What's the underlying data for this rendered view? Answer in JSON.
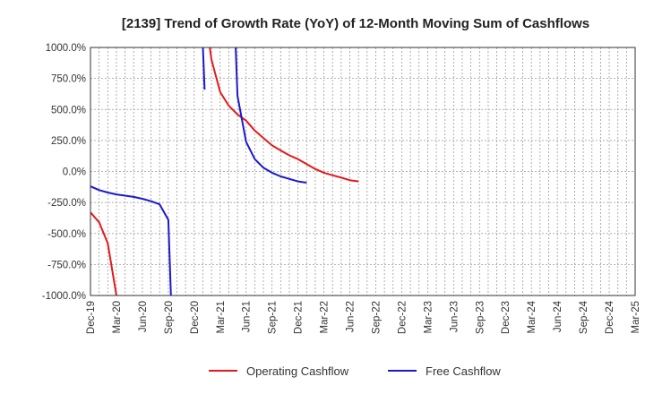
{
  "chart_data": {
    "type": "line",
    "title": "[2139]  Trend of Growth Rate (YoY) of 12-Month Moving Sum of Cashflows",
    "xlabel": "",
    "ylabel": "",
    "ylim": [
      -1000,
      1000
    ],
    "y_ticks": [
      "1000.0%",
      "750.0%",
      "500.0%",
      "250.0%",
      "0.0%",
      "-250.0%",
      "-500.0%",
      "-750.0%",
      "-1000.0%"
    ],
    "y_tick_values": [
      1000,
      750,
      500,
      250,
      0,
      -250,
      -500,
      -750,
      -1000
    ],
    "x_ticks": [
      "Dec-19",
      "Mar-20",
      "Jun-20",
      "Sep-20",
      "Dec-20",
      "Mar-21",
      "Jun-21",
      "Sep-21",
      "Dec-21",
      "Mar-22",
      "Jun-22",
      "Sep-22",
      "Dec-22",
      "Mar-23",
      "Jun-23",
      "Sep-23",
      "Dec-23",
      "Mar-24",
      "Jun-24",
      "Sep-24",
      "Dec-24",
      "Mar-25"
    ],
    "grid": true,
    "legend_position": "bottom",
    "series": [
      {
        "name": "Operating Cashflow",
        "color": "#e31a1c",
        "segments": [
          [
            [
              0,
              -330
            ],
            [
              1,
              -410
            ],
            [
              2,
              -580
            ],
            [
              3,
              -1000
            ]
          ],
          [
            [
              13.8,
              1000
            ],
            [
              14,
              900
            ],
            [
              15,
              640
            ],
            [
              16,
              530
            ],
            [
              17,
              460
            ],
            [
              18,
              410
            ],
            [
              19,
              330
            ],
            [
              20,
              270
            ],
            [
              21,
              210
            ],
            [
              22,
              170
            ],
            [
              23,
              130
            ],
            [
              24,
              100
            ],
            [
              25,
              60
            ],
            [
              26,
              20
            ],
            [
              27,
              -10
            ],
            [
              28,
              -30
            ],
            [
              29,
              -50
            ],
            [
              30,
              -70
            ],
            [
              31,
              -80
            ]
          ]
        ]
      },
      {
        "name": "Free Cashflow",
        "color": "#1a1acd",
        "segments": [
          [
            [
              0,
              -120
            ],
            [
              1,
              -150
            ],
            [
              2,
              -170
            ],
            [
              3,
              -185
            ],
            [
              4,
              -195
            ],
            [
              5,
              -205
            ],
            [
              6,
              -220
            ],
            [
              7,
              -240
            ],
            [
              8,
              -265
            ],
            [
              9,
              -390
            ],
            [
              9.3,
              -1000
            ]
          ],
          [
            [
              13,
              1000
            ],
            [
              13.2,
              660
            ]
          ],
          [
            [
              16.8,
              1000
            ],
            [
              17,
              610
            ],
            [
              18,
              240
            ],
            [
              19,
              100
            ],
            [
              20,
              30
            ],
            [
              21,
              -10
            ],
            [
              22,
              -40
            ],
            [
              23,
              -60
            ],
            [
              24,
              -80
            ],
            [
              25,
              -90
            ]
          ]
        ]
      }
    ]
  }
}
